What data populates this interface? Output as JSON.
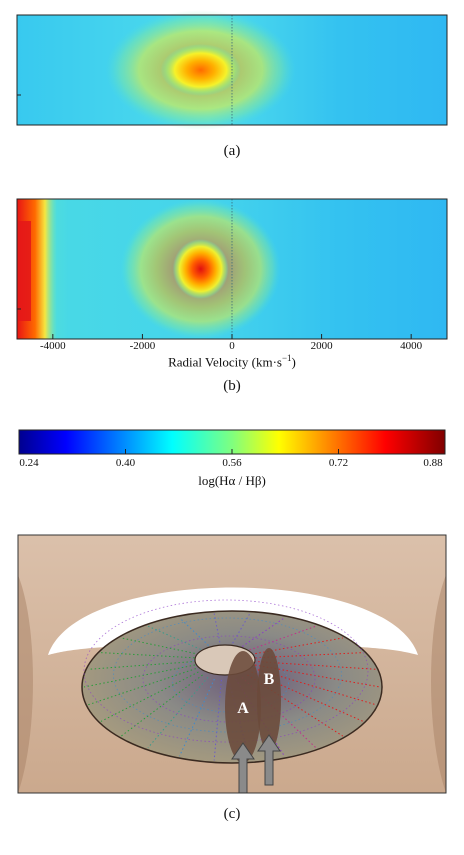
{
  "chart_data": [
    {
      "type": "heatmap",
      "panel": "(a)",
      "x_range": [
        -4800,
        4800
      ],
      "hotspots": [
        {
          "x": -700,
          "y": 0.5,
          "value": 0.75
        }
      ],
      "background_value": 0.47,
      "zero_line": true
    },
    {
      "type": "heatmap",
      "panel": "(b)",
      "xlabel": "Radial Velocity (km·s",
      "xlabel_exp": "−1",
      "xlabel_close": ")",
      "x_ticks": [
        "-4000",
        "-2000",
        "0",
        "2000",
        "4000"
      ],
      "x_tick_values": [
        -4000,
        -2000,
        0,
        2000,
        4000
      ],
      "x_range": [
        -4800,
        4800
      ],
      "hotspots": [
        {
          "x": -700,
          "y": 0.5,
          "value": 0.86
        },
        {
          "x": -4700,
          "y": 0.5,
          "value": 0.88
        }
      ],
      "background_value": 0.47,
      "zero_line": true
    },
    {
      "type": "colorbar",
      "label": "log(Hα / Hβ)",
      "ticks": [
        "0.24",
        "0.40",
        "0.56",
        "0.72",
        "0.88"
      ],
      "tick_values": [
        0.24,
        0.4,
        0.56,
        0.72,
        0.88
      ],
      "range": [
        0.24,
        0.88
      ],
      "colormap": "jet"
    }
  ],
  "panel_labels": {
    "a": "(a)",
    "b": "(b)",
    "c": "(c)"
  },
  "diagram": {
    "labels": {
      "a": "A",
      "b": "B"
    },
    "colors": {
      "torus": "#c9a88a",
      "disk": "#8a7868",
      "cloud": "#6b4a3a",
      "arrow": "#8a8a8a"
    }
  }
}
